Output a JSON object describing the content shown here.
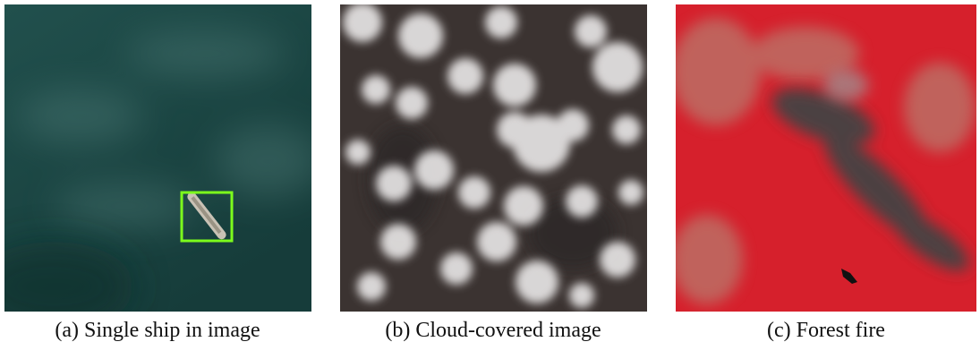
{
  "figure": {
    "panels": [
      {
        "caption": "(a) Single ship in image"
      },
      {
        "caption": "(b) Cloud-covered image"
      },
      {
        "caption": "(c) Forest fire"
      }
    ]
  }
}
